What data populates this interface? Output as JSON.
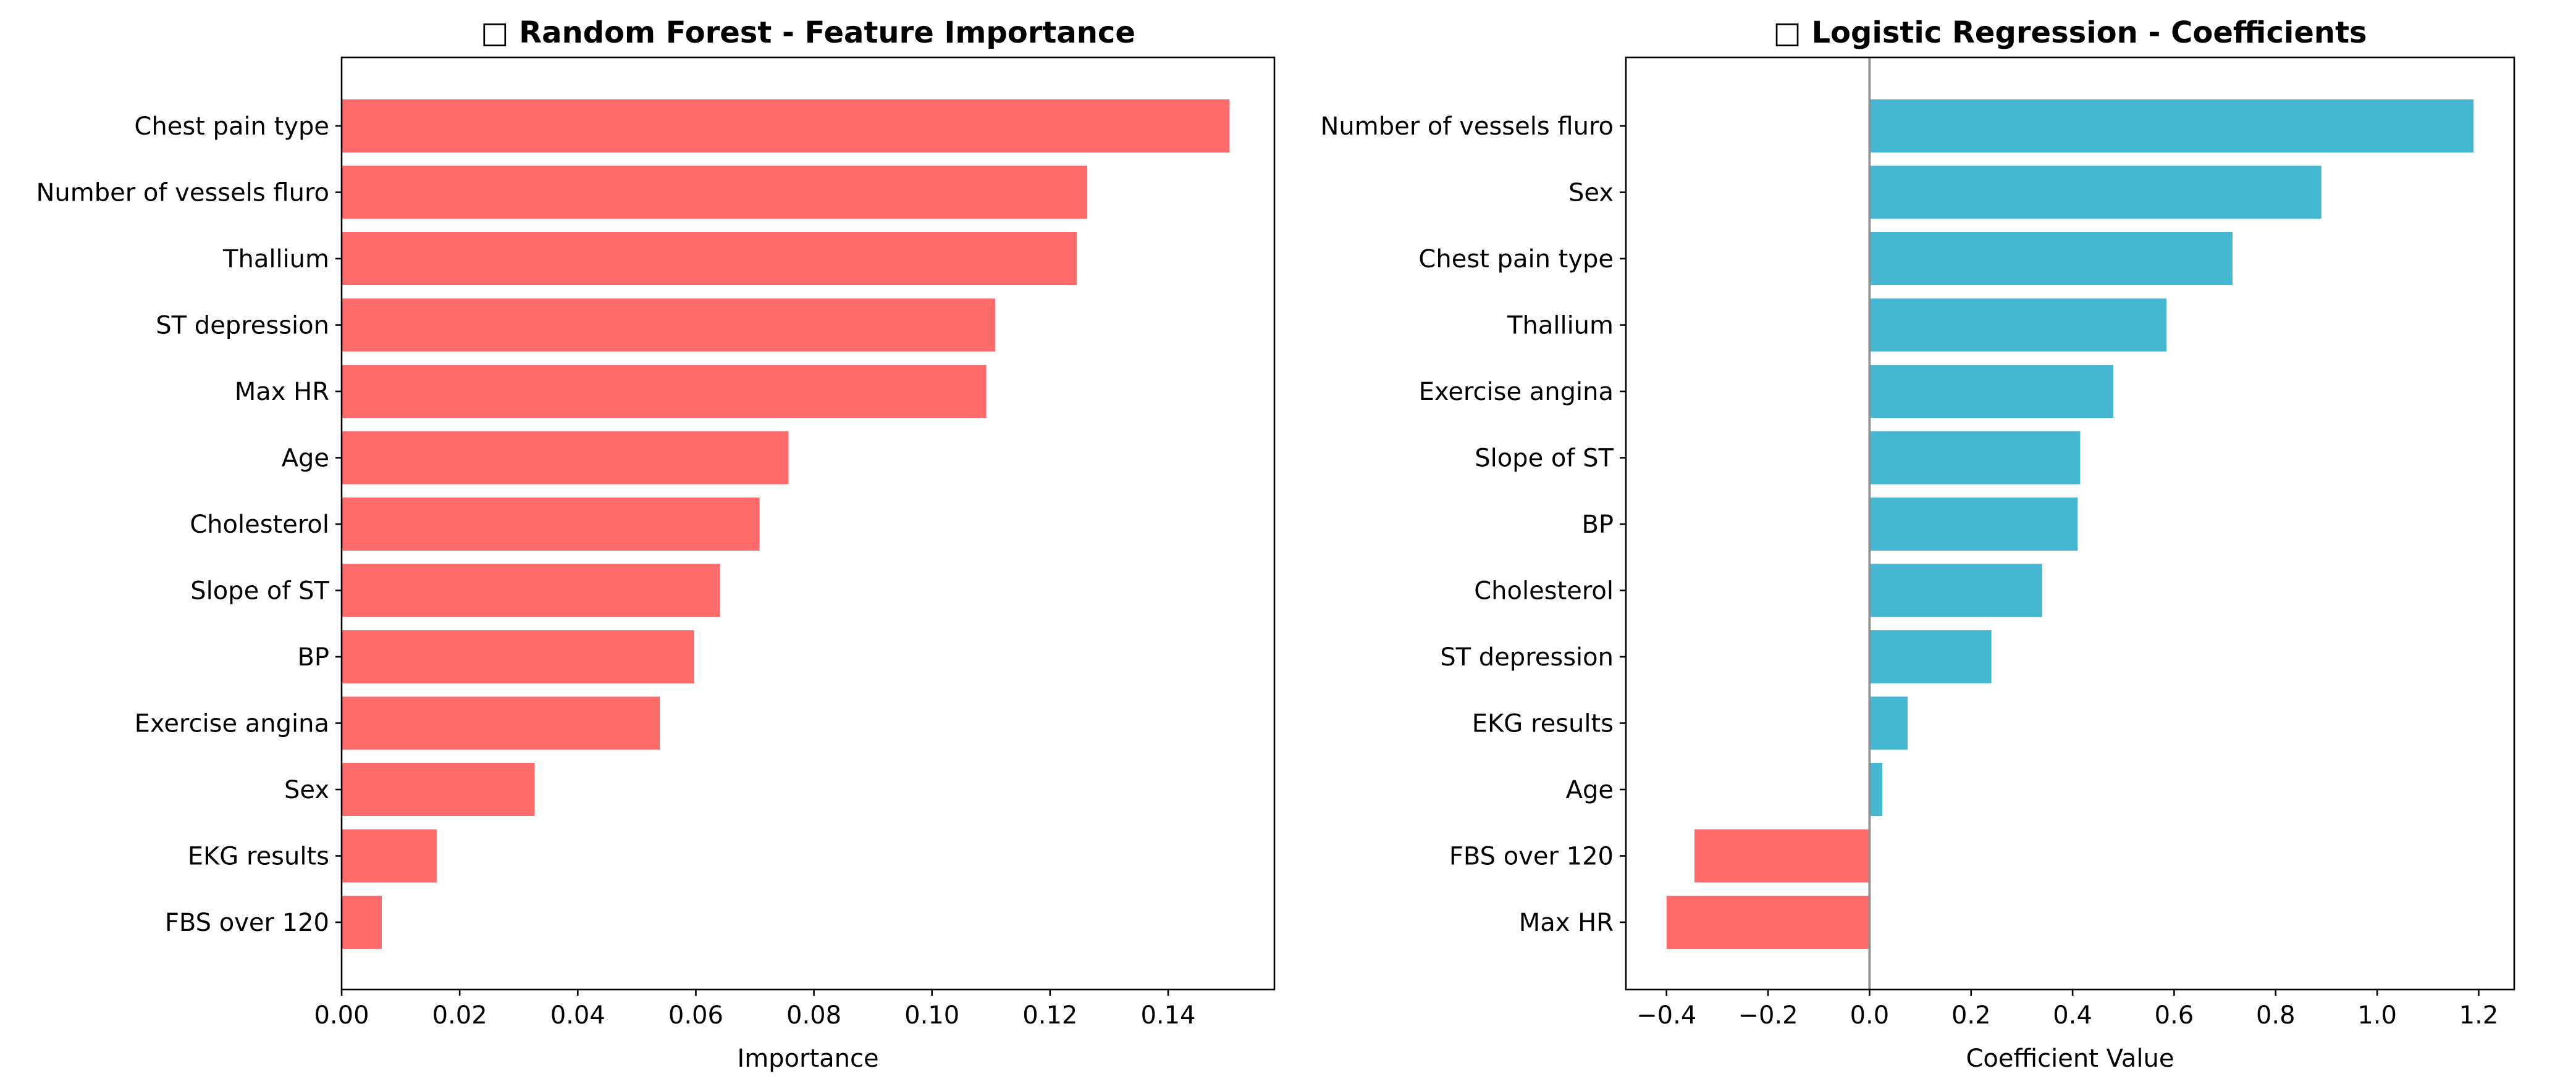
{
  "chart_data": [
    {
      "type": "bar",
      "orientation": "horizontal",
      "title": "□ Random Forest - Feature Importance",
      "xlabel": "Importance",
      "ylabel": "",
      "xlim": [
        0,
        0.158
      ],
      "xticks": [
        0.0,
        0.02,
        0.04,
        0.06,
        0.08,
        0.1,
        0.12,
        0.14
      ],
      "xtick_labels": [
        "0.00",
        "0.02",
        "0.04",
        "0.06",
        "0.08",
        "0.10",
        "0.12",
        "0.14"
      ],
      "grid": false,
      "bar_color": "#ff6b6b",
      "categories": [
        "Chest pain type",
        "Number of vessels fluro",
        "Thallium",
        "ST depression",
        "Max HR",
        "Age",
        "Cholesterol",
        "Slope of ST",
        "BP",
        "Exercise angina",
        "Sex",
        "EKG results",
        "FBS over 120"
      ],
      "values": [
        0.1504,
        0.1263,
        0.1245,
        0.1107,
        0.1092,
        0.0757,
        0.0708,
        0.0641,
        0.0597,
        0.0539,
        0.0327,
        0.0161,
        0.0068
      ]
    },
    {
      "type": "bar",
      "orientation": "horizontal",
      "title": "□ Logistic Regression - Coefficients",
      "xlabel": "Coefficient Value",
      "ylabel": "",
      "xlim": [
        -0.48,
        1.27
      ],
      "xticks": [
        -0.4,
        -0.2,
        0.0,
        0.2,
        0.4,
        0.6,
        0.8,
        1.0,
        1.2
      ],
      "xtick_labels": [
        "−0.4",
        "−0.2",
        "0.0",
        "0.2",
        "0.4",
        "0.6",
        "0.8",
        "1.0",
        "1.2"
      ],
      "grid": false,
      "zero_line": true,
      "positive_color": "#45b7d1",
      "negative_color": "#ff6b6b",
      "categories": [
        "Number of vessels fluro",
        "Sex",
        "Chest pain type",
        "Thallium",
        "Exercise angina",
        "Slope of ST",
        "BP",
        "Cholesterol",
        "ST depression",
        "EKG results",
        "Age",
        "FBS over 120",
        "Max HR"
      ],
      "values": [
        1.19,
        0.89,
        0.715,
        0.585,
        0.48,
        0.415,
        0.41,
        0.34,
        0.24,
        0.075,
        0.025,
        -0.345,
        -0.4
      ]
    }
  ]
}
